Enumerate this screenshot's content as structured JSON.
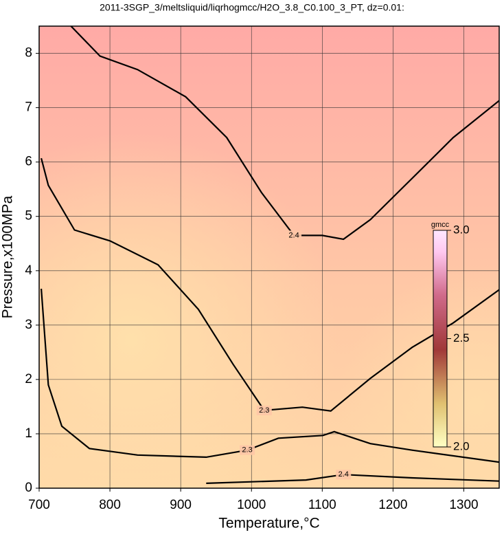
{
  "chart_data": {
    "type": "contour",
    "title": "2011-3SGP_3/meltsliquid/liqrhogmcc/H2O_3.8_C0.100_3_PT, dz=0.01:",
    "xlabel": "Temperature,°C",
    "ylabel": "Pressure,x100MPa",
    "xlim": [
      700,
      1350
    ],
    "ylim": [
      0,
      8.5
    ],
    "xticks": [
      700,
      800,
      900,
      1000,
      1100,
      1200,
      1300
    ],
    "yticks": [
      0,
      1,
      2,
      3,
      4,
      5,
      6,
      7,
      8
    ],
    "grid": true,
    "contours": [
      {
        "level": 2.4,
        "x": [
          745,
          786,
          839,
          907,
          965,
          1014,
          1060,
          1100,
          1130,
          1168,
          1227,
          1285,
          1350
        ],
        "y": [
          8.5,
          7.95,
          7.7,
          7.2,
          6.45,
          5.44,
          4.65,
          4.65,
          4.58,
          4.94,
          5.7,
          6.45,
          7.13
        ]
      },
      {
        "level": 2.3,
        "x": [
          703,
          713,
          750,
          800,
          868,
          925,
          974,
          1018,
          1072,
          1112,
          1168,
          1227,
          1285,
          1350
        ],
        "y": [
          6.07,
          5.57,
          4.75,
          4.55,
          4.11,
          3.29,
          2.28,
          1.43,
          1.49,
          1.42,
          2.02,
          2.59,
          3.04,
          3.65
        ]
      },
      {
        "level": 2.3,
        "x": [
          703,
          713,
          732,
          771,
          839,
          936,
          994,
          1038,
          1101,
          1117,
          1168,
          1227,
          1350
        ],
        "y": [
          3.67,
          1.9,
          1.14,
          0.73,
          0.61,
          0.57,
          0.7,
          0.92,
          0.97,
          1.04,
          0.82,
          0.7,
          0.48
        ]
      },
      {
        "level": 2.4,
        "x": [
          936,
          1077,
          1130,
          1227,
          1350
        ],
        "y": [
          0.09,
          0.15,
          0.25,
          0.19,
          0.13
        ]
      }
    ],
    "colorbar": {
      "label": "gmcc",
      "lim": [
        2.0,
        3.0
      ],
      "ticks": [
        {
          "value": 3.0,
          "label": "3.0"
        },
        {
          "value": 2.5,
          "label": "2.5"
        },
        {
          "value": 2.0,
          "label": "2.0"
        }
      ]
    }
  }
}
